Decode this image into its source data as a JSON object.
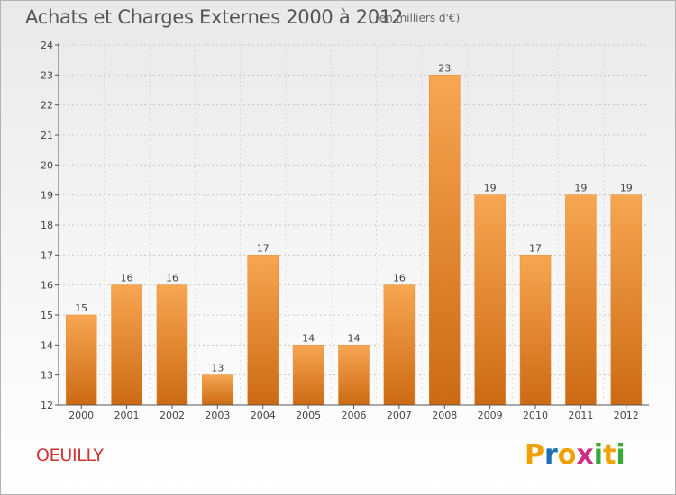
{
  "page": {
    "title": "Achats et Charges Externes 2000 à 2012",
    "subtitle": "(en milliers d'€)",
    "commune": "OEUILLY",
    "brand": {
      "letters": [
        "P",
        "r",
        "o",
        "x",
        "i",
        "t",
        "i"
      ],
      "colors": [
        "#f0a000",
        "#1f6fb5",
        "#f0a000",
        "#cc2e86",
        "#3aa83a",
        "#f0a000",
        "#3aa83a"
      ]
    }
  },
  "chart_data": {
    "type": "bar",
    "categories": [
      "2000",
      "2001",
      "2002",
      "2003",
      "2004",
      "2005",
      "2006",
      "2007",
      "2008",
      "2009",
      "2010",
      "2011",
      "2012"
    ],
    "values": [
      15,
      16,
      16,
      13,
      17,
      14,
      14,
      16,
      23,
      19,
      17,
      19,
      19
    ],
    "ylim": [
      12,
      24
    ],
    "yticks": [
      12,
      13,
      14,
      15,
      16,
      17,
      18,
      19,
      20,
      21,
      22,
      23,
      24
    ],
    "grid": "horizontal-dashed",
    "bar_color_top": "#f7a652",
    "bar_color_bottom": "#cc6a14",
    "xlabel": "",
    "ylabel": ""
  }
}
